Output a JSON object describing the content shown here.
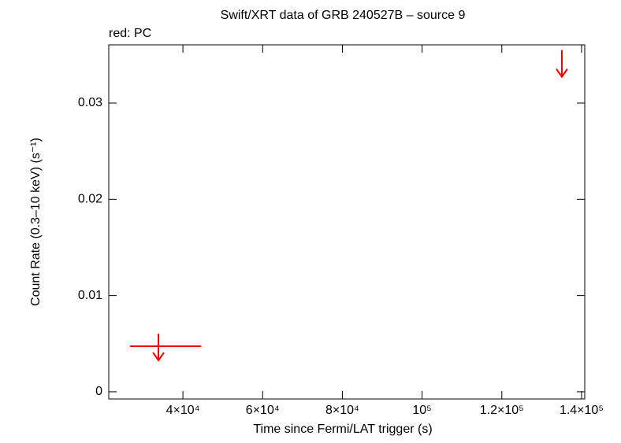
{
  "chart_data": {
    "type": "upper-limit",
    "title": "Swift/XRT data of GRB 240527B – source 9",
    "subtitle": "red: PC",
    "x_label": "Time since Fermi/LAT trigger (s)",
    "y_label": "Count Rate (0.3–10 keV) (s⁻¹)",
    "xlim": [
      21400,
      140800
    ],
    "ylim": [
      -0.00074,
      0.03605
    ],
    "xticks": [
      {
        "value": 40000,
        "label": "4×10⁴"
      },
      {
        "value": 60000,
        "label": "6×10⁴"
      },
      {
        "value": 80000,
        "label": "8×10⁴"
      },
      {
        "value": 100000,
        "label": "10⁵"
      },
      {
        "value": 120000,
        "label": "1.2×10⁵"
      },
      {
        "value": 140000,
        "label": "1.4×10⁵"
      }
    ],
    "yticks": [
      0,
      0.01,
      0.02,
      0.03
    ],
    "series": [
      {
        "color": "#ee0000",
        "x": [
          33870,
          135060
        ],
        "x_low": [
          26760,
          134900
        ],
        "x_high": [
          44545,
          135200
        ],
        "values": [
          0.00474,
          0.0342
        ]
      }
    ]
  }
}
